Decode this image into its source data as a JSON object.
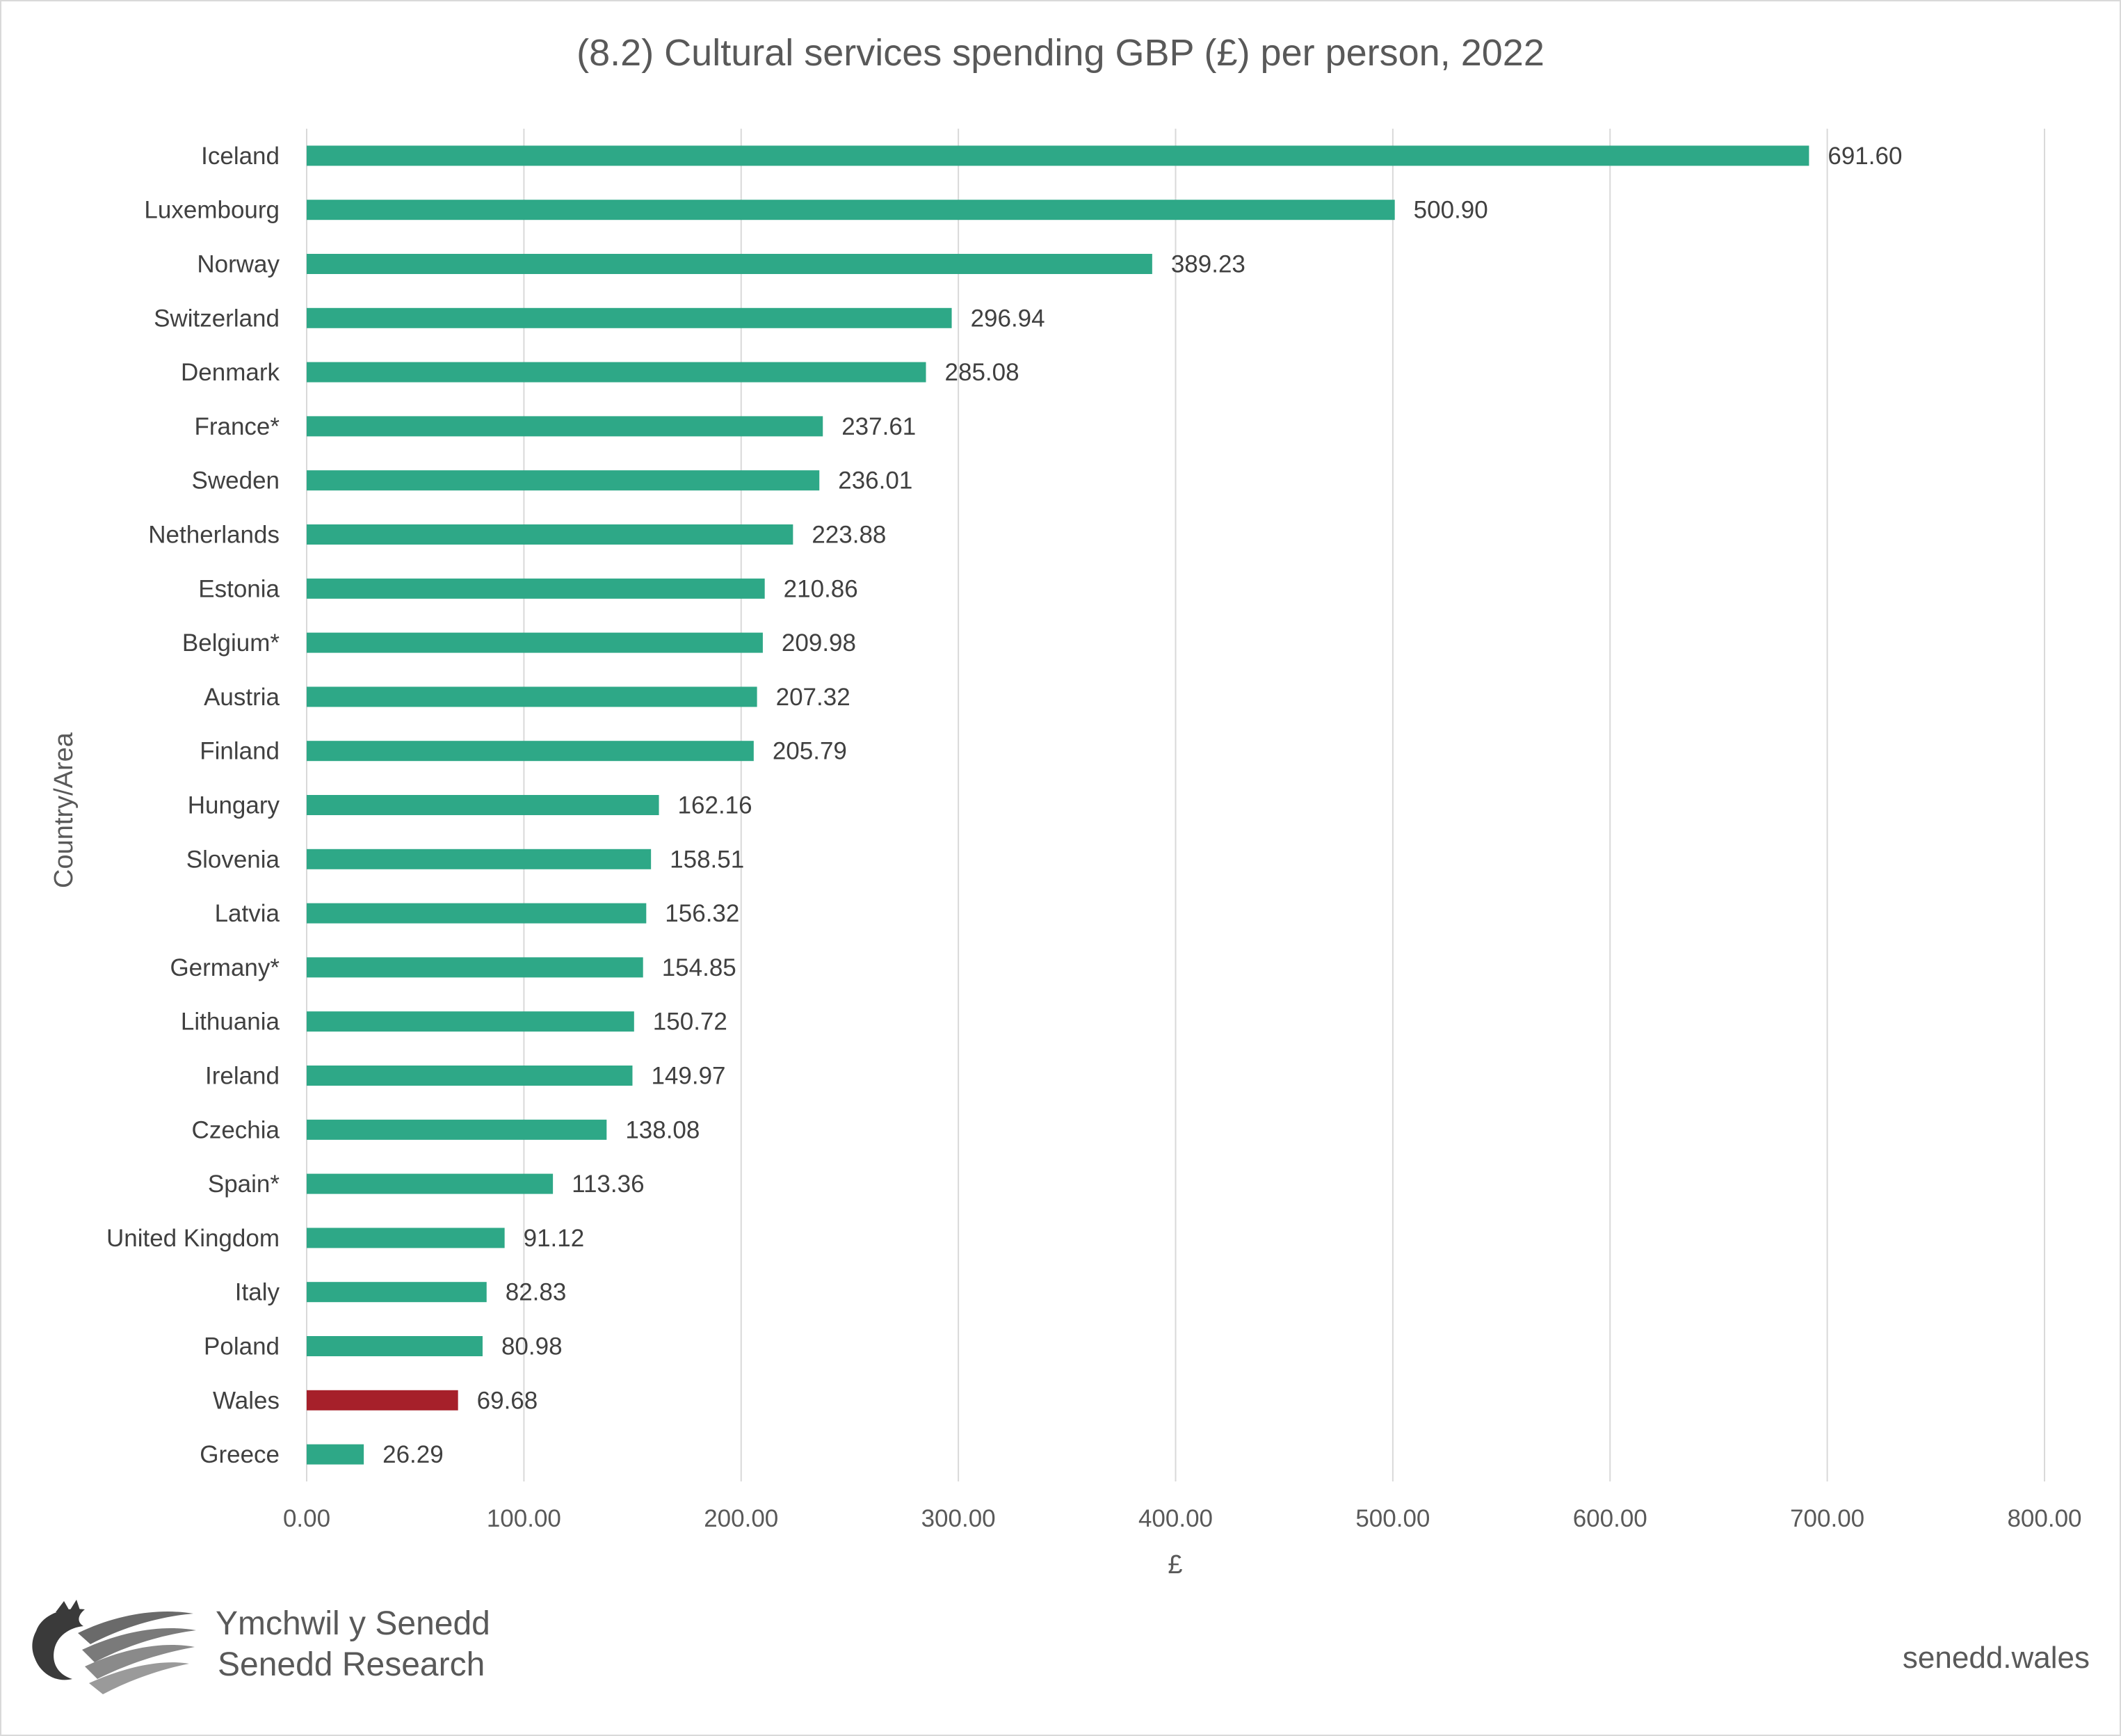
{
  "chart_data": {
    "type": "bar",
    "orientation": "horizontal",
    "title": "(8.2) Cultural services spending GBP (£) per person, 2022",
    "xlabel": "£",
    "ylabel": "Country/Area",
    "xlim": [
      0,
      800
    ],
    "xticks": [
      "0.00",
      "100.00",
      "200.00",
      "300.00",
      "400.00",
      "500.00",
      "600.00",
      "700.00",
      "800.00"
    ],
    "grid": "vertical",
    "legend": "none",
    "categories": [
      "Iceland",
      "Luxembourg",
      "Norway",
      "Switzerland",
      "Denmark",
      "France*",
      "Sweden",
      "Netherlands",
      "Estonia",
      "Belgium*",
      "Austria",
      "Finland",
      "Hungary",
      "Slovenia",
      "Latvia",
      "Germany*",
      "Lithuania",
      "Ireland",
      "Czechia",
      "Spain*",
      "United Kingdom",
      "Italy",
      "Poland",
      "Wales",
      "Greece"
    ],
    "values": [
      691.6,
      500.9,
      389.23,
      296.94,
      285.08,
      237.61,
      236.01,
      223.88,
      210.86,
      209.98,
      207.32,
      205.79,
      162.16,
      158.51,
      156.32,
      154.85,
      150.72,
      149.97,
      138.08,
      113.36,
      91.12,
      82.83,
      80.98,
      69.68,
      26.29
    ],
    "value_labels": [
      "691.60",
      "500.90",
      "389.23",
      "296.94",
      "285.08",
      "237.61",
      "236.01",
      "223.88",
      "210.86",
      "209.98",
      "207.32",
      "205.79",
      "162.16",
      "158.51",
      "156.32",
      "154.85",
      "150.72",
      "149.97",
      "138.08",
      "113.36",
      "91.12",
      "82.83",
      "80.98",
      "69.68",
      "26.29"
    ],
    "bar_color": "#2ea887",
    "highlight_category": "Wales",
    "highlight_color": "#a6202a",
    "grid_color": "#d9d9d9"
  },
  "branding": {
    "logo_icon": "senedd-dragon-logo-icon",
    "name_cy": "Ymchwil y Senedd",
    "name_en": "Senedd Research",
    "website": "senedd.wales"
  }
}
